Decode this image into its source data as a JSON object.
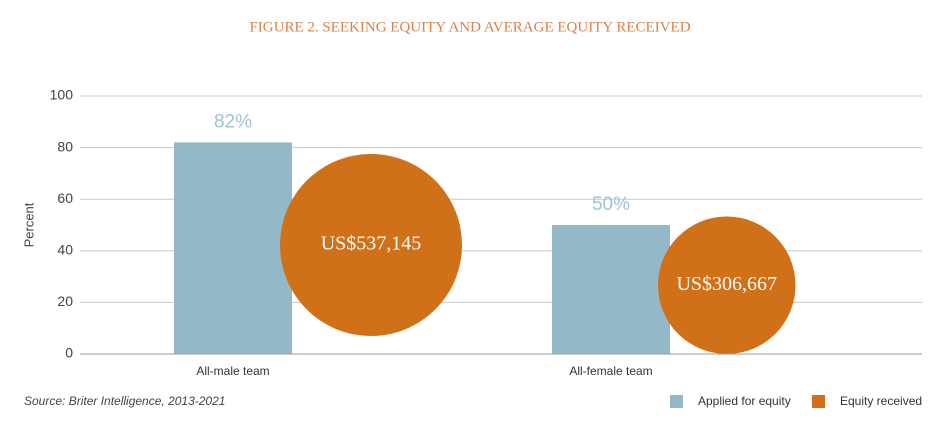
{
  "chart_data": {
    "type": "bar-bubble",
    "title": "FIGURE 2. SEEKING EQUITY AND AVERAGE EQUITY RECEIVED",
    "y_label": "Percent",
    "source": "Source: Briter Intelligence, 2013-2021",
    "categories": [
      "All-male team",
      "All-female team"
    ],
    "series": [
      {
        "name": "Applied for equity",
        "color": "#93b8c8",
        "values": [
          82,
          50
        ],
        "value_labels": [
          "82%",
          "50%"
        ]
      },
      {
        "name": "Equity received",
        "color": "#d07019",
        "values": [
          537145,
          306667
        ],
        "value_labels": [
          "US$537,145",
          "US$306,667"
        ]
      }
    ],
    "ylim": [
      0,
      100
    ],
    "yticks": [
      0,
      20,
      40,
      60,
      80,
      100
    ],
    "grid": true,
    "legend": "bottom-right"
  }
}
